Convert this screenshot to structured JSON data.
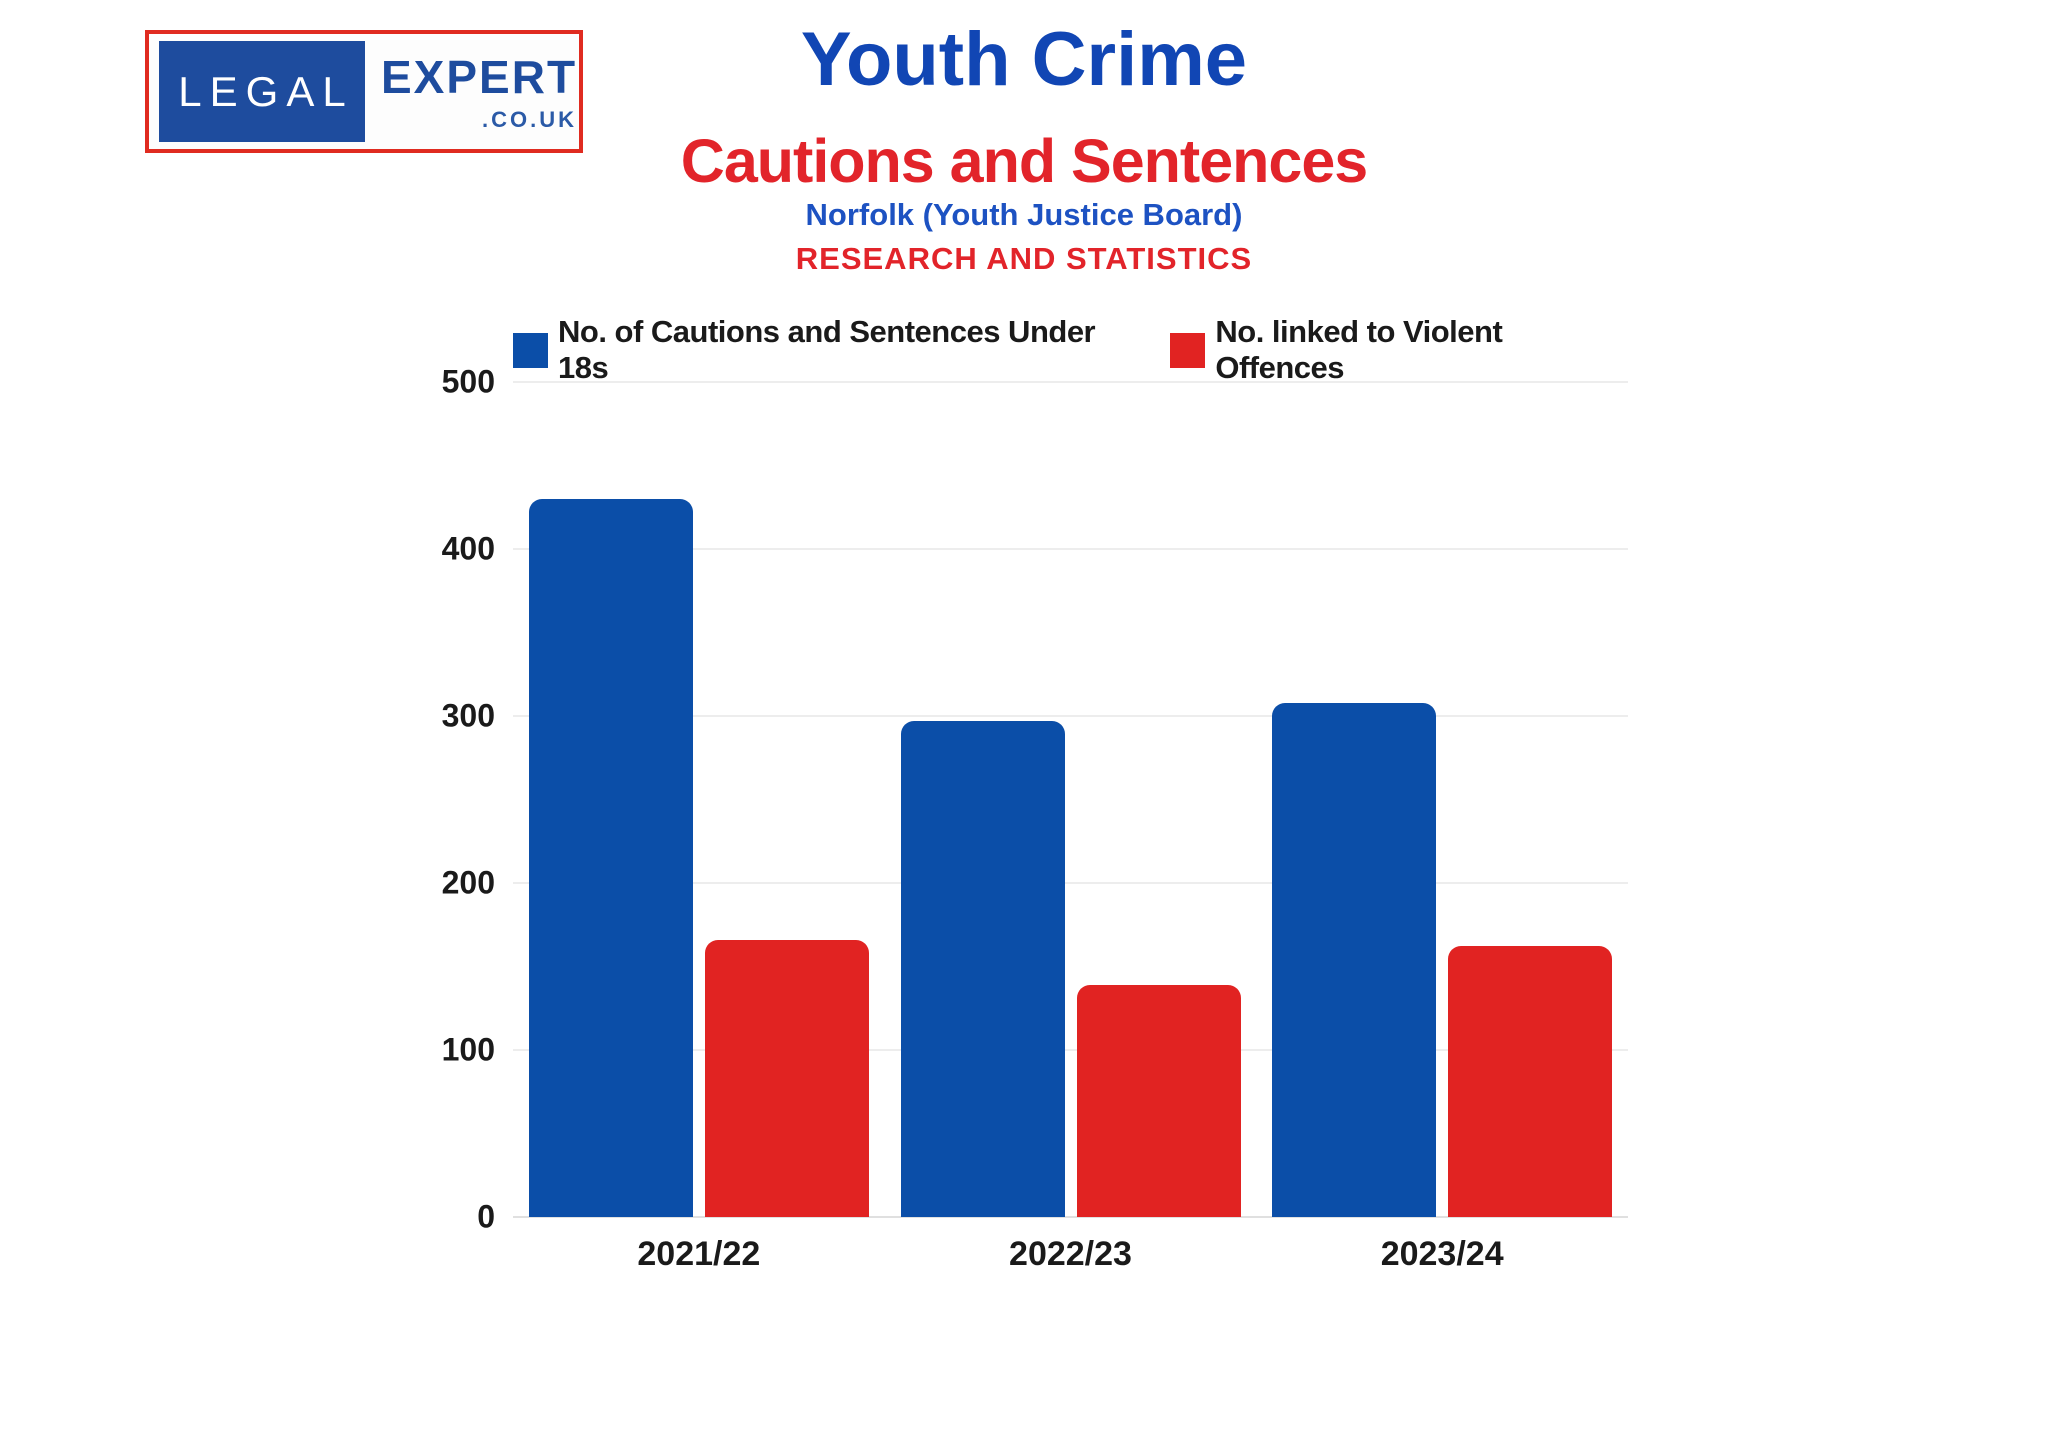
{
  "logo": {
    "left_text": "LEGAL",
    "right_text": "EXPERT",
    "domain_text": ".CO.UK"
  },
  "header": {
    "title": "Youth Crime",
    "subtitle": "Cautions and Sentences",
    "region_line": "Norfolk (Youth Justice Board)",
    "research_line": "RESEARCH AND STATISTICS"
  },
  "colors": {
    "bar_blue": "#0B4EA8",
    "bar_red": "#E12322",
    "title_blue": "#1146B4",
    "title_red": "#E2242A",
    "region_blue": "#1D52C2",
    "logo_blue": "#1E4C9E",
    "logo_border_red": "#E02B20",
    "axis_text": "#1A1A1A",
    "gridline": "#EDEDED"
  },
  "chart_data": {
    "type": "bar",
    "title": "Youth Crime - Cautions and Sentences",
    "subtitle": "Norfolk (Youth Justice Board) - RESEARCH AND STATISTICS",
    "categories": [
      "2021/22",
      "2022/23",
      "2023/24"
    ],
    "series": [
      {
        "name": "No. of Cautions and Sentences Under 18s",
        "color_key": "bar_blue",
        "values": [
          430,
          297,
          308
        ]
      },
      {
        "name": "No. linked to Violent Offences",
        "color_key": "bar_red",
        "values": [
          166,
          139,
          162
        ]
      }
    ],
    "xlabel": "",
    "ylabel": "",
    "ylim": [
      0,
      500
    ],
    "yticks": [
      0,
      100,
      200,
      300,
      400,
      500
    ],
    "grid": "horizontal",
    "legend_position": "top"
  }
}
